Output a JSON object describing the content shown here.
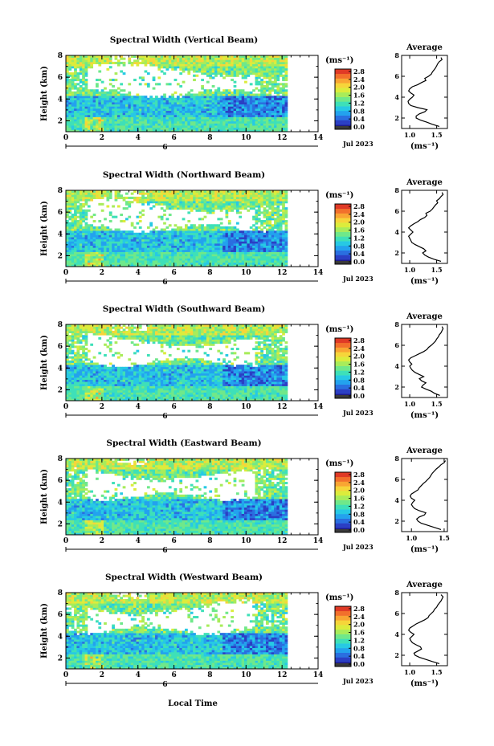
{
  "figure": {
    "xlabel": "Local Time",
    "colorbar_unit": "(ms⁻¹)",
    "date_label": "Jul 2023",
    "day_marker": "6",
    "average_title": "Average",
    "average_xlabel": "(ms⁻¹)",
    "colormap": [
      "#1e1b8c",
      "#2b3fc4",
      "#2a6fe0",
      "#23a2ee",
      "#27c9e4",
      "#3ee0b8",
      "#6fe88a",
      "#a8ec5a",
      "#dcec3c",
      "#f6d53a",
      "#f9a533",
      "#f2702c",
      "#e03a26"
    ]
  },
  "chart_data": [
    {
      "type": "heatmap",
      "title": "Spectral Width (Vertical Beam)",
      "ylabel": "Height (km)",
      "xlim": [
        0,
        14
      ],
      "ylim": [
        1,
        8
      ],
      "xticks": [
        0,
        2,
        4,
        6,
        8,
        10,
        12,
        14
      ],
      "yticks": [
        2,
        4,
        6,
        8
      ],
      "colorbar": {
        "ticks": [
          "0.0",
          "0.4",
          "0.8",
          "1.2",
          "1.6",
          "2.0",
          "2.4",
          "2.8"
        ],
        "range": [
          0,
          2.8
        ]
      },
      "data_extent_x": [
        0,
        12.3
      ],
      "average": {
        "xlim": [
          0.85,
          1.7
        ],
        "xticks": [
          1.0,
          1.5
        ],
        "yticks": [
          2,
          4,
          6,
          8
        ],
        "height": [
          1.2,
          1.4,
          1.6,
          1.8,
          2.0,
          2.2,
          2.4,
          2.6,
          2.8,
          3.0,
          3.2,
          3.4,
          3.6,
          3.8,
          4.0,
          4.2,
          4.4,
          4.6,
          4.8,
          5.0,
          5.2,
          5.4,
          5.6,
          5.8,
          6.0,
          6.2,
          6.4,
          6.6,
          6.8,
          7.0,
          7.2,
          7.4,
          7.6,
          7.8
        ],
        "width": [
          1.55,
          1.42,
          1.32,
          1.2,
          1.12,
          1.12,
          1.18,
          1.28,
          1.32,
          1.15,
          1.02,
          0.98,
          0.97,
          1.0,
          1.05,
          1.08,
          1.02,
          0.98,
          1.0,
          1.05,
          1.15,
          1.22,
          1.3,
          1.28,
          1.35,
          1.4,
          1.42,
          1.45,
          1.48,
          1.5,
          1.52,
          1.55,
          1.6,
          1.58
        ]
      }
    },
    {
      "type": "heatmap",
      "title": "Spectral Width (Northward Beam)",
      "ylabel": "Height (km)",
      "xlim": [
        0,
        14
      ],
      "ylim": [
        1,
        8
      ],
      "xticks": [
        0,
        2,
        4,
        6,
        8,
        10,
        12,
        14
      ],
      "yticks": [
        2,
        4,
        6,
        8
      ],
      "colorbar": {
        "ticks": [
          "0.0",
          "0.4",
          "0.8",
          "1.2",
          "1.6",
          "2.0",
          "2.4",
          "2.8"
        ],
        "range": [
          0,
          2.8
        ]
      },
      "data_extent_x": [
        0,
        12.3
      ],
      "average": {
        "xlim": [
          0.85,
          1.7
        ],
        "xticks": [
          1.0,
          1.5
        ],
        "yticks": [
          2,
          4,
          6,
          8
        ],
        "height": [
          1.2,
          1.4,
          1.6,
          1.8,
          2.0,
          2.2,
          2.4,
          2.6,
          2.8,
          3.0,
          3.2,
          3.4,
          3.6,
          3.8,
          4.0,
          4.2,
          4.4,
          4.6,
          4.8,
          5.0,
          5.2,
          5.4,
          5.6,
          5.8,
          6.0,
          6.2,
          6.4,
          6.6,
          6.8,
          7.0,
          7.2,
          7.4,
          7.6,
          7.8
        ],
        "width": [
          1.58,
          1.45,
          1.35,
          1.28,
          1.24,
          1.3,
          1.26,
          1.18,
          1.1,
          1.04,
          1.02,
          1.0,
          0.98,
          1.02,
          1.06,
          1.02,
          0.98,
          1.02,
          1.08,
          1.15,
          1.2,
          1.28,
          1.32,
          1.3,
          1.38,
          1.42,
          1.45,
          1.48,
          1.52,
          1.5,
          1.55,
          1.58,
          1.62,
          1.6
        ]
      }
    },
    {
      "type": "heatmap",
      "title": "Spectral Width (Southward Beam)",
      "ylabel": "Height (km)",
      "xlim": [
        0,
        14
      ],
      "ylim": [
        1,
        8
      ],
      "xticks": [
        0,
        2,
        4,
        6,
        8,
        10,
        12,
        14
      ],
      "yticks": [
        2,
        4,
        6,
        8
      ],
      "colorbar": {
        "ticks": [
          "0.0",
          "0.4",
          "0.8",
          "1.2",
          "1.6",
          "2.0",
          "2.4",
          "2.8"
        ],
        "range": [
          0,
          2.8
        ]
      },
      "data_extent_x": [
        0,
        12.3
      ],
      "average": {
        "xlim": [
          0.85,
          1.7
        ],
        "xticks": [
          1.0,
          1.5
        ],
        "yticks": [
          2,
          4,
          6,
          8
        ],
        "height": [
          1.2,
          1.4,
          1.6,
          1.8,
          2.0,
          2.2,
          2.4,
          2.6,
          2.8,
          3.0,
          3.2,
          3.4,
          3.6,
          3.8,
          4.0,
          4.2,
          4.4,
          4.6,
          4.8,
          5.0,
          5.2,
          5.4,
          5.6,
          5.8,
          6.0,
          6.2,
          6.4,
          6.6,
          6.8,
          7.0,
          7.2,
          7.4,
          7.6,
          7.8
        ],
        "width": [
          1.56,
          1.46,
          1.4,
          1.3,
          1.22,
          1.25,
          1.3,
          1.22,
          1.18,
          1.26,
          1.18,
          1.1,
          1.05,
          1.02,
          1.0,
          1.04,
          1.0,
          0.98,
          1.02,
          1.1,
          1.18,
          1.26,
          1.32,
          1.35,
          1.4,
          1.44,
          1.48,
          1.5,
          1.53,
          1.55,
          1.58,
          1.6,
          1.62,
          1.6
        ]
      }
    },
    {
      "type": "heatmap",
      "title": "Spectral Width (Eastward Beam)",
      "ylabel": "Height (km)",
      "xlim": [
        0,
        14
      ],
      "ylim": [
        1,
        8
      ],
      "xticks": [
        0,
        2,
        4,
        6,
        8,
        10,
        12,
        14
      ],
      "yticks": [
        2,
        4,
        6,
        8
      ],
      "colorbar": {
        "ticks": [
          "0.0",
          "0.4",
          "0.8",
          "1.2",
          "1.6",
          "2.0",
          "2.4",
          "2.8"
        ],
        "range": [
          0,
          2.8
        ]
      },
      "data_extent_x": [
        0,
        12.3
      ],
      "average": {
        "xlim": [
          0.85,
          1.55
        ],
        "xticks": [
          1.0,
          1.5
        ],
        "yticks": [
          2,
          4,
          6,
          8
        ],
        "height": [
          1.2,
          1.4,
          1.6,
          1.8,
          2.0,
          2.2,
          2.4,
          2.6,
          2.8,
          3.0,
          3.2,
          3.4,
          3.6,
          3.8,
          4.0,
          4.2,
          4.4,
          4.6,
          4.8,
          5.0,
          5.2,
          5.4,
          5.6,
          5.8,
          6.0,
          6.2,
          6.4,
          6.6,
          6.8,
          7.0,
          7.2,
          7.4,
          7.6,
          7.8
        ],
        "width": [
          1.45,
          1.35,
          1.25,
          1.15,
          1.1,
          1.08,
          1.12,
          1.2,
          1.22,
          1.12,
          1.05,
          1.02,
          1.0,
          1.02,
          1.05,
          1.0,
          0.98,
          1.0,
          1.05,
          1.1,
          1.12,
          1.15,
          1.18,
          1.22,
          1.25,
          1.28,
          1.3,
          1.32,
          1.35,
          1.38,
          1.42,
          1.45,
          1.5,
          1.52
        ]
      }
    },
    {
      "type": "heatmap",
      "title": "Spectral Width (Westward Beam)",
      "ylabel": "Height (km)",
      "xlim": [
        0,
        14
      ],
      "ylim": [
        1,
        8
      ],
      "xticks": [
        0,
        2,
        4,
        6,
        8,
        10,
        12,
        14
      ],
      "yticks": [
        2,
        4,
        6,
        8
      ],
      "colorbar": {
        "ticks": [
          "0.0",
          "0.4",
          "0.8",
          "1.2",
          "1.6",
          "2.0",
          "2.4",
          "2.8"
        ],
        "range": [
          0,
          2.8
        ]
      },
      "data_extent_x": [
        0,
        12.3
      ],
      "average": {
        "xlim": [
          0.85,
          1.7
        ],
        "xticks": [
          1.0,
          1.5
        ],
        "yticks": [
          2,
          4,
          6,
          8
        ],
        "height": [
          1.2,
          1.4,
          1.6,
          1.8,
          2.0,
          2.2,
          2.4,
          2.6,
          2.8,
          3.0,
          3.2,
          3.4,
          3.6,
          3.8,
          4.0,
          4.2,
          4.4,
          4.6,
          4.8,
          5.0,
          5.2,
          5.4,
          5.6,
          5.8,
          6.0,
          6.2,
          6.4,
          6.6,
          6.8,
          7.0,
          7.2,
          7.4,
          7.6,
          7.8
        ],
        "width": [
          1.55,
          1.42,
          1.3,
          1.18,
          1.1,
          1.08,
          1.15,
          1.22,
          1.2,
          1.12,
          1.05,
          1.02,
          1.0,
          1.04,
          1.08,
          1.02,
          0.98,
          1.0,
          1.06,
          1.12,
          1.2,
          1.28,
          1.34,
          1.36,
          1.4,
          1.44,
          1.46,
          1.5,
          1.52,
          1.55,
          1.58,
          1.6,
          1.62,
          1.58
        ]
      }
    }
  ]
}
